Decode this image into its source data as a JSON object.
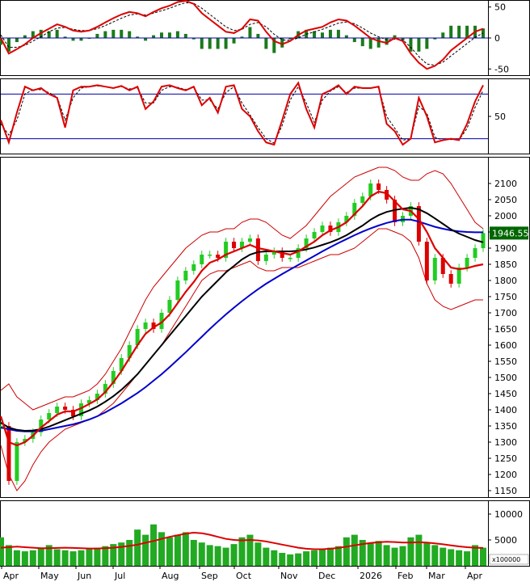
{
  "colors": {
    "background": "#ffffff",
    "frame": "#000000",
    "price_up": "#22cc22",
    "price_down": "#dd0000",
    "bollinger": "#cc0000",
    "ma_short": "#dd0000",
    "ma_mid": "#000000",
    "ma_long": "#0000cc",
    "macd_line": "#dd0000",
    "macd_signal": "#000000",
    "macd_hist": "#1a7a1a",
    "stoch_k": "#dd0000",
    "stoch_d": "#000000",
    "stoch_levels": "#0000aa",
    "volume_bars": "#22aa22",
    "volume_ma": "#dd0000",
    "price_tag_bg": "#006600",
    "price_tag_text": "#ffffff"
  },
  "chart_data": [
    {
      "panel": "macd",
      "type": "line",
      "ylim": [
        -60,
        60
      ],
      "yticks": [
        -50,
        0,
        50
      ],
      "x": [
        0,
        10,
        20,
        30,
        40,
        50,
        60,
        70,
        80,
        90,
        100,
        110,
        120,
        130,
        140,
        150,
        160,
        170,
        180,
        190,
        200,
        210,
        220,
        230,
        240,
        250,
        260,
        270,
        280,
        290,
        300,
        310,
        320,
        330,
        340,
        350,
        360,
        370,
        380,
        390,
        400,
        410,
        420,
        430,
        440,
        450,
        460,
        470,
        480,
        490,
        500,
        510,
        520,
        530,
        540,
        550,
        560,
        570,
        580,
        590,
        600
      ],
      "series": [
        {
          "role": "macd",
          "values": [
            0,
            -25,
            -18,
            -10,
            0,
            8,
            15,
            22,
            18,
            12,
            10,
            12,
            18,
            25,
            32,
            38,
            42,
            40,
            35,
            42,
            48,
            52,
            58,
            60,
            55,
            40,
            30,
            20,
            10,
            8,
            15,
            30,
            28,
            10,
            -5,
            -10,
            -5,
            5,
            12,
            15,
            18,
            25,
            30,
            28,
            20,
            10,
            0,
            -5,
            -8,
            0,
            -5,
            -25,
            -40,
            -50,
            -45,
            -35,
            -20,
            -10,
            0,
            10,
            15
          ]
        },
        {
          "role": "signal",
          "values": [
            5,
            -15,
            -15,
            -12,
            -5,
            2,
            10,
            16,
            17,
            14,
            12,
            12,
            15,
            20,
            26,
            32,
            37,
            39,
            37,
            40,
            44,
            48,
            53,
            57,
            56,
            48,
            38,
            28,
            18,
            12,
            14,
            22,
            25,
            18,
            6,
            -3,
            -4,
            0,
            6,
            10,
            14,
            19,
            24,
            26,
            23,
            16,
            8,
            2,
            -3,
            -2,
            -3,
            -15,
            -30,
            -42,
            -44,
            -39,
            -29,
            -19,
            -9,
            1,
            8
          ]
        }
      ]
    },
    {
      "panel": "stochastic",
      "type": "line",
      "ylim": [
        0,
        100
      ],
      "yticks": [
        50
      ],
      "levels": [
        20,
        80
      ],
      "x": [
        0,
        10,
        20,
        30,
        40,
        50,
        60,
        70,
        80,
        90,
        100,
        110,
        120,
        130,
        140,
        150,
        160,
        170,
        180,
        190,
        200,
        210,
        220,
        230,
        240,
        250,
        260,
        270,
        280,
        290,
        300,
        310,
        320,
        330,
        340,
        350,
        360,
        370,
        380,
        390,
        400,
        410,
        420,
        430,
        440,
        450,
        460,
        470,
        480,
        490,
        500,
        510,
        520,
        530,
        540,
        550,
        560,
        570,
        580,
        590,
        600
      ],
      "series": [
        {
          "role": "k",
          "values": [
            45,
            15,
            55,
            90,
            85,
            88,
            80,
            75,
            35,
            85,
            90,
            90,
            92,
            90,
            88,
            91,
            85,
            90,
            60,
            70,
            90,
            92,
            88,
            85,
            90,
            65,
            75,
            55,
            90,
            92,
            60,
            50,
            30,
            15,
            12,
            45,
            80,
            95,
            60,
            35,
            80,
            85,
            92,
            80,
            90,
            88,
            88,
            90,
            40,
            30,
            12,
            20,
            75,
            50,
            15,
            18,
            20,
            18,
            40,
            70,
            92
          ]
        },
        {
          "role": "d",
          "values": [
            40,
            25,
            45,
            80,
            86,
            86,
            82,
            76,
            45,
            75,
            88,
            90,
            91,
            90,
            88,
            90,
            87,
            88,
            68,
            68,
            85,
            90,
            89,
            86,
            89,
            72,
            72,
            60,
            82,
            90,
            68,
            52,
            35,
            20,
            14,
            38,
            72,
            90,
            68,
            42,
            72,
            84,
            90,
            82,
            88,
            88,
            88,
            89,
            50,
            34,
            18,
            20,
            64,
            54,
            22,
            18,
            19,
            18,
            34,
            62,
            85
          ]
        }
      ]
    },
    {
      "panel": "price",
      "type": "line",
      "ylim": [
        1130,
        2180
      ],
      "yticks": [
        1150,
        1200,
        1250,
        1300,
        1350,
        1400,
        1450,
        1500,
        1550,
        1600,
        1650,
        1700,
        1750,
        1800,
        1850,
        1900,
        1950,
        2000,
        2050,
        2100
      ],
      "last_price": "1946.55",
      "x": [
        0,
        10,
        20,
        30,
        40,
        50,
        60,
        70,
        80,
        90,
        100,
        110,
        120,
        130,
        140,
        150,
        160,
        170,
        180,
        190,
        200,
        210,
        220,
        230,
        240,
        250,
        260,
        270,
        280,
        290,
        300,
        310,
        320,
        330,
        340,
        350,
        360,
        370,
        380,
        390,
        400,
        410,
        420,
        430,
        440,
        450,
        460,
        470,
        480,
        490,
        500,
        510,
        520,
        530,
        540,
        550,
        560,
        570,
        580,
        590,
        600
      ],
      "series": [
        {
          "role": "close",
          "values": [
            1350,
            1180,
            1300,
            1310,
            1330,
            1370,
            1390,
            1410,
            1400,
            1380,
            1420,
            1430,
            1450,
            1480,
            1520,
            1560,
            1600,
            1650,
            1670,
            1650,
            1700,
            1740,
            1800,
            1830,
            1850,
            1880,
            1880,
            1870,
            1920,
            1900,
            1920,
            1930,
            1860,
            1880,
            1890,
            1870,
            1870,
            1900,
            1930,
            1950,
            1970,
            1950,
            1980,
            2000,
            2040,
            2060,
            2100,
            2080,
            2050,
            1980,
            2000,
            2030,
            1920,
            1800,
            1870,
            1820,
            1790,
            1840,
            1870,
            1900,
            1946.55
          ]
        },
        {
          "role": "ma_short",
          "values": [
            1380,
            1300,
            1290,
            1300,
            1320,
            1345,
            1365,
            1385,
            1395,
            1395,
            1405,
            1418,
            1432,
            1455,
            1485,
            1520,
            1560,
            1600,
            1635,
            1655,
            1670,
            1695,
            1730,
            1765,
            1795,
            1830,
            1855,
            1865,
            1880,
            1890,
            1900,
            1910,
            1900,
            1895,
            1890,
            1885,
            1880,
            1890,
            1905,
            1920,
            1940,
            1955,
            1965,
            1980,
            2005,
            2030,
            2060,
            2075,
            2070,
            2045,
            2020,
            2015,
            1990,
            1950,
            1900,
            1870,
            1840,
            1835,
            1838,
            1845,
            1850
          ]
        },
        {
          "role": "ma_mid",
          "values": [
            1360,
            1345,
            1338,
            1335,
            1336,
            1340,
            1348,
            1358,
            1368,
            1378,
            1388,
            1398,
            1410,
            1425,
            1442,
            1462,
            1485,
            1510,
            1540,
            1570,
            1600,
            1630,
            1660,
            1690,
            1720,
            1750,
            1775,
            1800,
            1825,
            1845,
            1865,
            1880,
            1888,
            1890,
            1890,
            1890,
            1890,
            1892,
            1896,
            1902,
            1910,
            1918,
            1928,
            1940,
            1955,
            1970,
            1988,
            2002,
            2012,
            2018,
            2022,
            2025,
            2020,
            2008,
            1992,
            1975,
            1958,
            1945,
            1935,
            1925,
            1918
          ]
        },
        {
          "role": "ma_long",
          "values": [
            1345,
            1340,
            1335,
            1333,
            1333,
            1335,
            1340,
            1345,
            1350,
            1355,
            1362,
            1370,
            1380,
            1392,
            1406,
            1420,
            1436,
            1452,
            1470,
            1490,
            1510,
            1532,
            1555,
            1578,
            1602,
            1626,
            1650,
            1673,
            1695,
            1716,
            1736,
            1755,
            1773,
            1790,
            1805,
            1820,
            1834,
            1848,
            1862,
            1876,
            1890,
            1903,
            1916,
            1928,
            1940,
            1951,
            1961,
            1970,
            1978,
            1984,
            1988,
            1988,
            1982,
            1974,
            1966,
            1960,
            1955,
            1952,
            1950,
            1949,
            1949
          ]
        },
        {
          "role": "bb_upper",
          "values": [
            1460,
            1480,
            1440,
            1420,
            1400,
            1410,
            1420,
            1430,
            1440,
            1440,
            1450,
            1460,
            1480,
            1510,
            1550,
            1590,
            1640,
            1690,
            1740,
            1780,
            1810,
            1840,
            1870,
            1900,
            1920,
            1940,
            1950,
            1950,
            1960,
            1960,
            1980,
            1990,
            1990,
            1980,
            1960,
            1940,
            1930,
            1950,
            1970,
            2000,
            2030,
            2060,
            2080,
            2100,
            2120,
            2130,
            2140,
            2150,
            2150,
            2140,
            2120,
            2110,
            2110,
            2130,
            2140,
            2130,
            2100,
            2060,
            2020,
            1980,
            1960
          ]
        },
        {
          "role": "bb_lower",
          "values": [
            1290,
            1200,
            1150,
            1180,
            1230,
            1270,
            1300,
            1320,
            1340,
            1350,
            1360,
            1370,
            1380,
            1400,
            1420,
            1450,
            1480,
            1510,
            1540,
            1570,
            1600,
            1640,
            1680,
            1720,
            1760,
            1800,
            1820,
            1830,
            1830,
            1840,
            1850,
            1860,
            1840,
            1830,
            1830,
            1840,
            1840,
            1840,
            1850,
            1860,
            1870,
            1880,
            1880,
            1890,
            1900,
            1920,
            1940,
            1960,
            1960,
            1950,
            1940,
            1920,
            1870,
            1790,
            1740,
            1720,
            1710,
            1720,
            1730,
            1740,
            1740
          ]
        }
      ]
    },
    {
      "panel": "volume",
      "type": "bar",
      "ylim": [
        0,
        12500
      ],
      "yticks": [
        5000,
        10000
      ],
      "unit_label": "x100000",
      "x": [
        0,
        10,
        20,
        30,
        40,
        50,
        60,
        70,
        80,
        90,
        100,
        110,
        120,
        130,
        140,
        150,
        160,
        170,
        180,
        190,
        200,
        210,
        220,
        230,
        240,
        250,
        260,
        270,
        280,
        290,
        300,
        310,
        320,
        330,
        340,
        350,
        360,
        370,
        380,
        390,
        400,
        410,
        420,
        430,
        440,
        450,
        460,
        470,
        480,
        490,
        500,
        510,
        520,
        530,
        540,
        550,
        560,
        570,
        580,
        590,
        600
      ],
      "series": [
        {
          "role": "volume",
          "values": [
            5500,
            4000,
            3000,
            2800,
            3000,
            3500,
            4000,
            3200,
            3000,
            2800,
            3000,
            3200,
            3500,
            3800,
            4200,
            4500,
            5000,
            7000,
            6000,
            8000,
            6500,
            5500,
            6000,
            6500,
            5000,
            4500,
            4000,
            3800,
            3500,
            4200,
            5500,
            6000,
            4500,
            3500,
            3000,
            2500,
            2200,
            2400,
            2800,
            3000,
            3200,
            3500,
            3800,
            5500,
            6000,
            5000,
            4500,
            4800,
            4000,
            3500,
            3800,
            5500,
            6000,
            4500,
            4000,
            3500,
            3200,
            3000,
            2800,
            4000,
            3500
          ]
        },
        {
          "role": "volume_ma",
          "values": [
            3500,
            3600,
            3700,
            3600,
            3500,
            3400,
            3400,
            3450,
            3500,
            3450,
            3400,
            3350,
            3350,
            3400,
            3500,
            3650,
            3850,
            4100,
            4450,
            4800,
            5200,
            5600,
            5900,
            6200,
            6400,
            6300,
            6000,
            5600,
            5200,
            5000,
            4900,
            5000,
            4900,
            4700,
            4400,
            4100,
            3800,
            3500,
            3300,
            3200,
            3200,
            3300,
            3450,
            3700,
            3950,
            4200,
            4400,
            4550,
            4650,
            4600,
            4500,
            4500,
            4550,
            4500,
            4350,
            4150,
            3950,
            3750,
            3600,
            3500,
            3450
          ]
        }
      ]
    },
    {
      "panel": "time_axis",
      "type": "table",
      "x": [
        2,
        48,
        94,
        140,
        198,
        247,
        290,
        345,
        392,
        443,
        490,
        528,
        576
      ],
      "labels": [
        "Apr",
        "May",
        "Jun",
        "Jul",
        "Aug",
        "Sep",
        "Oct",
        "Nov",
        "Dec",
        "2026",
        "Feb",
        "Mar",
        "Apr"
      ]
    }
  ]
}
